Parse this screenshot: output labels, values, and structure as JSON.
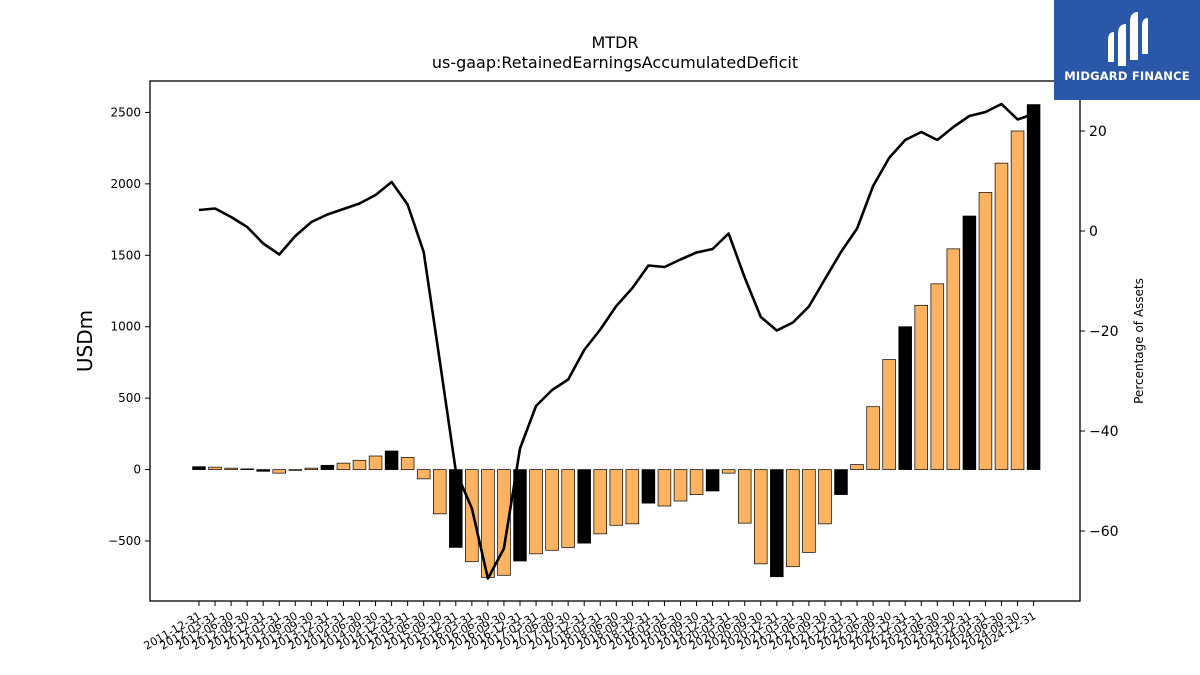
{
  "chart_data": {
    "type": "bar+line",
    "title": "MTDR",
    "subtitle": "us-gaap:RetainedEarningsAccumulatedDeficit",
    "ylabel": "USDm",
    "y2label": "Percentage of Assets",
    "ylim": [
      -920,
      2720
    ],
    "y2lim": [
      -74,
      30
    ],
    "yticks": [
      -500,
      0,
      500,
      1000,
      1500,
      2000,
      2500
    ],
    "y2ticks": [
      -60,
      -40,
      -20,
      0,
      20
    ],
    "categories": [
      "2011-12-31",
      "2012-03-31",
      "2012-06-30",
      "2012-09-30",
      "2012-12-31",
      "2013-03-31",
      "2013-06-30",
      "2013-09-30",
      "2013-12-31",
      "2014-03-31",
      "2014-06-30",
      "2014-09-30",
      "2014-12-31",
      "2015-03-31",
      "2015-06-30",
      "2015-09-30",
      "2015-12-31",
      "2016-03-31",
      "2016-06-30",
      "2016-09-30",
      "2016-12-31",
      "2017-03-31",
      "2017-06-30",
      "2017-09-30",
      "2017-12-31",
      "2018-03-31",
      "2018-06-30",
      "2018-09-30",
      "2018-12-31",
      "2019-03-31",
      "2019-06-30",
      "2019-09-30",
      "2019-12-31",
      "2020-03-31",
      "2020-06-30",
      "2020-09-30",
      "2020-12-31",
      "2021-03-31",
      "2021-06-30",
      "2021-09-30",
      "2021-12-31",
      "2022-03-31",
      "2022-06-30",
      "2022-09-30",
      "2022-12-31",
      "2023-03-31",
      "2023-06-30",
      "2023-09-30",
      "2023-12-31",
      "2024-03-31",
      "2024-06-30",
      "2024-09-30",
      "2024-12-31"
    ],
    "series": [
      {
        "type": "bar",
        "values": [
          20,
          17,
          10,
          5,
          -12,
          -25,
          -5,
          10,
          30,
          45,
          65,
          95,
          130,
          85,
          -65,
          -310,
          -545,
          -645,
          -755,
          -740,
          -640,
          -590,
          -565,
          -545,
          -515,
          -450,
          -390,
          -380,
          -235,
          -255,
          -220,
          -175,
          -150,
          -25,
          -375,
          -660,
          -750,
          -680,
          -580,
          -380,
          -175,
          35,
          440,
          770,
          1000,
          1150,
          1300,
          1545,
          1775,
          1940,
          2145,
          2370,
          2555
        ],
        "highlight_index": [
          0,
          4,
          8,
          12,
          16,
          20,
          24,
          28,
          32,
          36,
          40,
          44,
          48,
          52
        ],
        "colors": {
          "default": "#fdb462",
          "highlight": "#000000"
        }
      },
      {
        "type": "line",
        "axis": "right",
        "values": [
          4.2,
          4.5,
          2.8,
          0.8,
          -2.5,
          -4.7,
          -1.0,
          1.8,
          3.3,
          4.4,
          5.5,
          7.2,
          9.8,
          5.3,
          -4.2,
          -26.0,
          -48.0,
          -55.5,
          -69.5,
          -63.5,
          -43.5,
          -35.0,
          -31.8,
          -29.7,
          -23.8,
          -19.7,
          -15.0,
          -11.4,
          -6.9,
          -7.2,
          -5.7,
          -4.3,
          -3.6,
          -0.5,
          -9.3,
          -17.2,
          -19.9,
          -18.3,
          -15.1,
          -9.6,
          -4.2,
          0.5,
          9.0,
          14.6,
          18.2,
          19.8,
          18.2,
          20.8,
          23.0,
          23.8,
          25.4,
          22.3,
          23.4
        ],
        "color": "#000000"
      }
    ],
    "grid": false,
    "legend": "none"
  },
  "logo": {
    "text": "MIDGARD FINANCE",
    "icon": "midgard-logo-icon"
  }
}
